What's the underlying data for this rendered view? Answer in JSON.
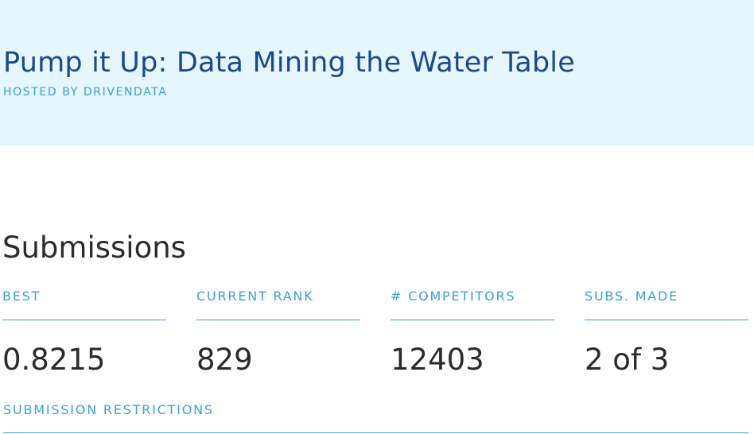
{
  "competition": {
    "title": "Pump it Up: Data Mining the Water Table",
    "host": "HOSTED BY DRIVENDATA"
  },
  "submissions": {
    "heading": "Submissions",
    "stats": [
      {
        "label": "BEST",
        "value": "0.8215"
      },
      {
        "label": "CURRENT RANK",
        "value": "829"
      },
      {
        "label": "# COMPETITORS",
        "value": "12403"
      },
      {
        "label": "SUBS. MADE",
        "value": "2 of 3"
      }
    ],
    "restrictions_label": "SUBMISSION RESTRICTIONS"
  },
  "colors": {
    "hero_background": "#e5f6fc",
    "title": "#1b4a8c",
    "accent": "#3ba0d8",
    "text": "#2b2b2b"
  }
}
